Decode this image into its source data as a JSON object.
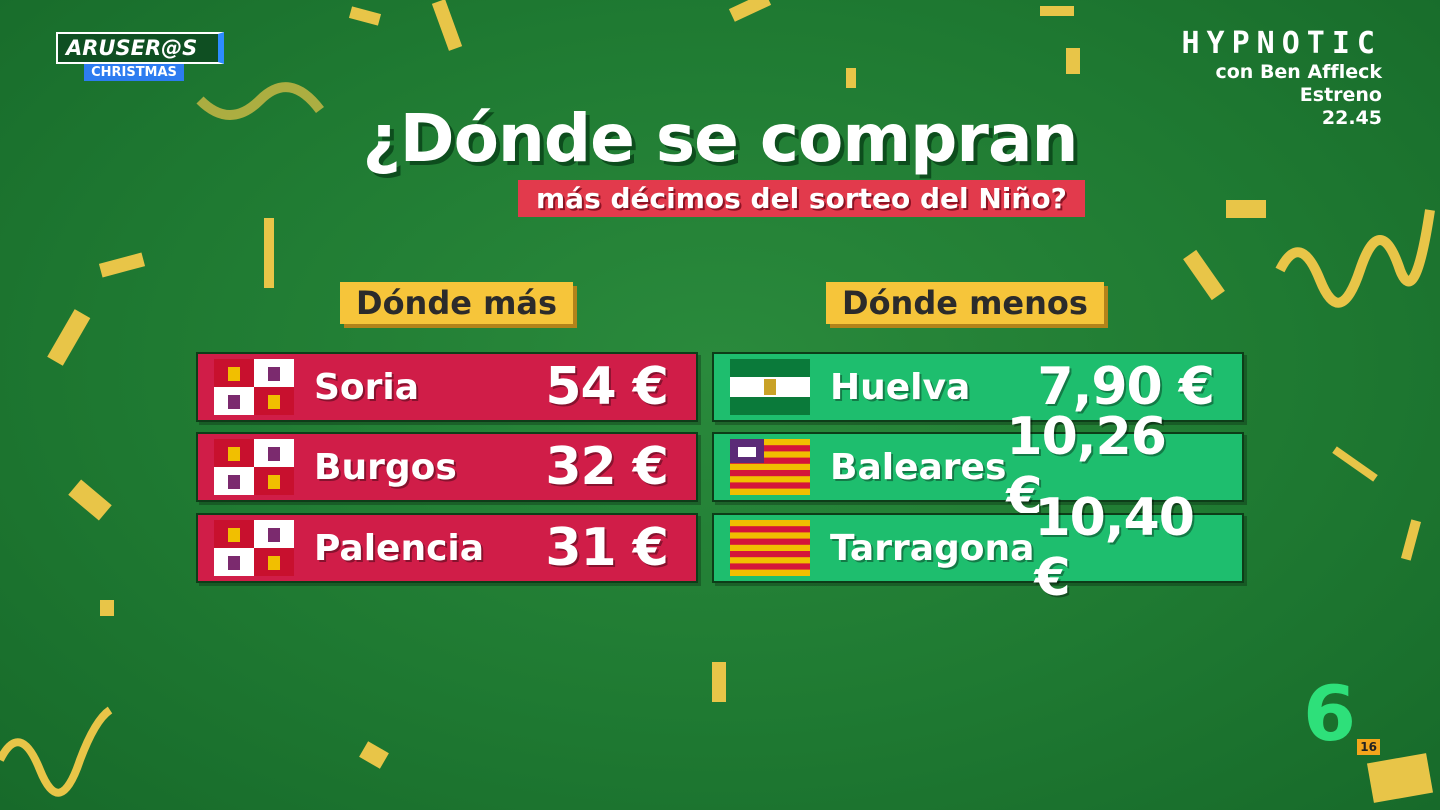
{
  "logo": {
    "title": "ARUSER@S",
    "subtitle": "CHRISTMAS"
  },
  "promo": {
    "title": "HYPNOTIC",
    "lines": [
      "con Ben Affleck",
      "Estreno",
      "22.45"
    ]
  },
  "header": {
    "title": "¿Dónde se compran",
    "subtitle": "más décimos del sorteo del Niño?"
  },
  "columns": [
    {
      "heading": "Dónde más",
      "rows": [
        [
          "Soria",
          "54 €"
        ],
        [
          "Burgos",
          "32 €"
        ],
        [
          "Palencia",
          "31 €"
        ]
      ]
    },
    {
      "heading": "Dónde menos",
      "rows": [
        [
          "Huelva",
          "7,90 €"
        ],
        [
          "Baleares",
          "10,26 €"
        ],
        [
          "Tarragona",
          "10,40 €"
        ]
      ]
    }
  ],
  "channel": {
    "logo": "6",
    "rating": "16"
  }
}
